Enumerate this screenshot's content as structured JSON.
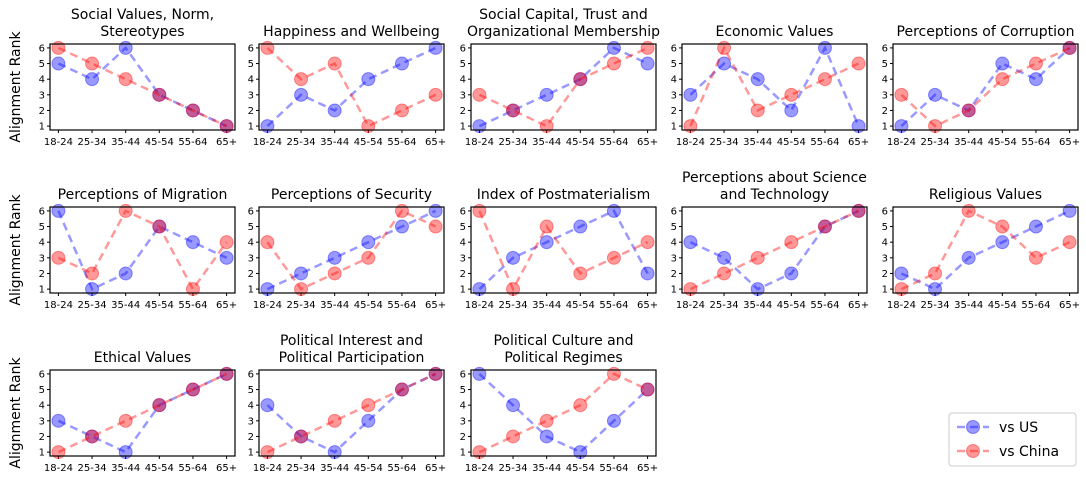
{
  "chart_data": [
    {
      "type": "line",
      "title": "Social Values, Norm,\nStereotypes",
      "ylabel": "Alignment Rank",
      "categories": [
        "18-24",
        "25-34",
        "35-44",
        "45-54",
        "55-64",
        "65+"
      ],
      "series": [
        {
          "name": "vs US",
          "color": "#0000ff",
          "values": [
            5,
            4,
            6,
            3,
            2,
            1
          ]
        },
        {
          "name": "vs China",
          "color": "#ff0000",
          "values": [
            6,
            5,
            4,
            3,
            2,
            1
          ]
        }
      ],
      "ylim": [
        0.75,
        6.25
      ],
      "yticks": [
        1,
        2,
        3,
        4,
        5,
        6
      ],
      "legend": "lower right"
    },
    {
      "type": "line",
      "title": "Happiness and Wellbeing",
      "categories": [
        "18-24",
        "25-34",
        "35-44",
        "45-54",
        "55-64",
        "65+"
      ],
      "series": [
        {
          "name": "vs US",
          "color": "#0000ff",
          "values": [
            1,
            3,
            2,
            4,
            5,
            6
          ]
        },
        {
          "name": "vs China",
          "color": "#ff0000",
          "values": [
            6,
            4,
            5,
            1,
            2,
            3
          ]
        }
      ],
      "ylim": [
        0.75,
        6.25
      ],
      "yticks": [
        1,
        2,
        3,
        4,
        5,
        6
      ]
    },
    {
      "type": "line",
      "title": "Social Capital, Trust and\nOrganizational Membership",
      "categories": [
        "18-24",
        "25-34",
        "35-44",
        "45-54",
        "55-64",
        "65+"
      ],
      "series": [
        {
          "name": "vs US",
          "color": "#0000ff",
          "values": [
            1,
            2,
            3,
            4,
            6,
            5
          ]
        },
        {
          "name": "vs China",
          "color": "#ff0000",
          "values": [
            3,
            2,
            1,
            4,
            5,
            6
          ]
        }
      ],
      "ylim": [
        0.75,
        6.25
      ],
      "yticks": [
        1,
        2,
        3,
        4,
        5,
        6
      ]
    },
    {
      "type": "line",
      "title": "Economic Values",
      "categories": [
        "18-24",
        "25-34",
        "35-44",
        "45-54",
        "55-64",
        "65+"
      ],
      "series": [
        {
          "name": "vs US",
          "color": "#0000ff",
          "values": [
            3,
            5,
            4,
            2,
            6,
            1
          ]
        },
        {
          "name": "vs China",
          "color": "#ff0000",
          "values": [
            1,
            6,
            2,
            3,
            4,
            5
          ]
        }
      ],
      "ylim": [
        0.75,
        6.25
      ],
      "yticks": [
        1,
        2,
        3,
        4,
        5,
        6
      ]
    },
    {
      "type": "line",
      "title": "Perceptions of Corruption",
      "categories": [
        "18-24",
        "25-34",
        "35-44",
        "45-54",
        "55-64",
        "65+"
      ],
      "series": [
        {
          "name": "vs US",
          "color": "#0000ff",
          "values": [
            1,
            3,
            2,
            5,
            4,
            6
          ]
        },
        {
          "name": "vs China",
          "color": "#ff0000",
          "values": [
            3,
            1,
            2,
            4,
            5,
            6
          ]
        }
      ],
      "ylim": [
        0.75,
        6.25
      ],
      "yticks": [
        1,
        2,
        3,
        4,
        5,
        6
      ]
    },
    {
      "type": "line",
      "title": "Perceptions of Migration",
      "ylabel": "Alignment Rank",
      "categories": [
        "18-24",
        "25-34",
        "35-44",
        "45-54",
        "55-64",
        "65+"
      ],
      "series": [
        {
          "name": "vs US",
          "color": "#0000ff",
          "values": [
            6,
            1,
            2,
            5,
            4,
            3
          ]
        },
        {
          "name": "vs China",
          "color": "#ff0000",
          "values": [
            3,
            2,
            6,
            5,
            1,
            4
          ]
        }
      ],
      "ylim": [
        0.75,
        6.25
      ],
      "yticks": [
        1,
        2,
        3,
        4,
        5,
        6
      ]
    },
    {
      "type": "line",
      "title": "Perceptions of Security",
      "categories": [
        "18-24",
        "25-34",
        "35-44",
        "45-54",
        "55-64",
        "65+"
      ],
      "series": [
        {
          "name": "vs US",
          "color": "#0000ff",
          "values": [
            1,
            2,
            3,
            4,
            5,
            6
          ]
        },
        {
          "name": "vs China",
          "color": "#ff0000",
          "values": [
            4,
            1,
            2,
            3,
            6,
            5
          ]
        }
      ],
      "ylim": [
        0.75,
        6.25
      ],
      "yticks": [
        1,
        2,
        3,
        4,
        5,
        6
      ]
    },
    {
      "type": "line",
      "title": "Index of Postmaterialism",
      "categories": [
        "18-24",
        "25-34",
        "35-44",
        "45-54",
        "55-64",
        "65+"
      ],
      "series": [
        {
          "name": "vs US",
          "color": "#0000ff",
          "values": [
            1,
            3,
            4,
            5,
            6,
            2
          ]
        },
        {
          "name": "vs China",
          "color": "#ff0000",
          "values": [
            6,
            1,
            5,
            2,
            3,
            4
          ]
        }
      ],
      "ylim": [
        0.75,
        6.25
      ],
      "yticks": [
        1,
        2,
        3,
        4,
        5,
        6
      ]
    },
    {
      "type": "line",
      "title": "Perceptions about Science\nand Technology",
      "categories": [
        "18-24",
        "25-34",
        "35-44",
        "45-54",
        "55-64",
        "65+"
      ],
      "series": [
        {
          "name": "vs US",
          "color": "#0000ff",
          "values": [
            4,
            3,
            1,
            2,
            5,
            6
          ]
        },
        {
          "name": "vs China",
          "color": "#ff0000",
          "values": [
            1,
            2,
            3,
            4,
            5,
            6
          ]
        }
      ],
      "ylim": [
        0.75,
        6.25
      ],
      "yticks": [
        1,
        2,
        3,
        4,
        5,
        6
      ]
    },
    {
      "type": "line",
      "title": "Religious Values",
      "categories": [
        "18-24",
        "25-34",
        "35-44",
        "45-54",
        "55-64",
        "65+"
      ],
      "series": [
        {
          "name": "vs US",
          "color": "#0000ff",
          "values": [
            2,
            1,
            3,
            4,
            5,
            6
          ]
        },
        {
          "name": "vs China",
          "color": "#ff0000",
          "values": [
            1,
            2,
            6,
            5,
            3,
            4
          ]
        }
      ],
      "ylim": [
        0.75,
        6.25
      ],
      "yticks": [
        1,
        2,
        3,
        4,
        5,
        6
      ]
    },
    {
      "type": "line",
      "title": "Ethical Values",
      "ylabel": "Alignment Rank",
      "categories": [
        "18-24",
        "25-34",
        "35-44",
        "45-54",
        "55-64",
        "65+"
      ],
      "series": [
        {
          "name": "vs US",
          "color": "#0000ff",
          "values": [
            3,
            2,
            1,
            4,
            5,
            6
          ]
        },
        {
          "name": "vs China",
          "color": "#ff0000",
          "values": [
            1,
            2,
            3,
            4,
            5,
            6
          ]
        }
      ],
      "ylim": [
        0.75,
        6.25
      ],
      "yticks": [
        1,
        2,
        3,
        4,
        5,
        6
      ]
    },
    {
      "type": "line",
      "title": "Political Interest and\nPolitical Participation",
      "categories": [
        "18-24",
        "25-34",
        "35-44",
        "45-54",
        "55-64",
        "65+"
      ],
      "series": [
        {
          "name": "vs US",
          "color": "#0000ff",
          "values": [
            4,
            2,
            1,
            3,
            5,
            6
          ]
        },
        {
          "name": "vs China",
          "color": "#ff0000",
          "values": [
            1,
            2,
            3,
            4,
            5,
            6
          ]
        }
      ],
      "ylim": [
        0.75,
        6.25
      ],
      "yticks": [
        1,
        2,
        3,
        4,
        5,
        6
      ]
    },
    {
      "type": "line",
      "title": "Political Culture and\nPolitical Regimes",
      "categories": [
        "18-24",
        "25-34",
        "35-44",
        "45-54",
        "55-64",
        "65+"
      ],
      "series": [
        {
          "name": "vs US",
          "color": "#0000ff",
          "values": [
            6,
            4,
            2,
            1,
            3,
            5
          ]
        },
        {
          "name": "vs China",
          "color": "#ff0000",
          "values": [
            1,
            2,
            3,
            4,
            6,
            5
          ]
        }
      ],
      "ylim": [
        0.75,
        6.25
      ],
      "yticks": [
        1,
        2,
        3,
        4,
        5,
        6
      ]
    }
  ]
}
